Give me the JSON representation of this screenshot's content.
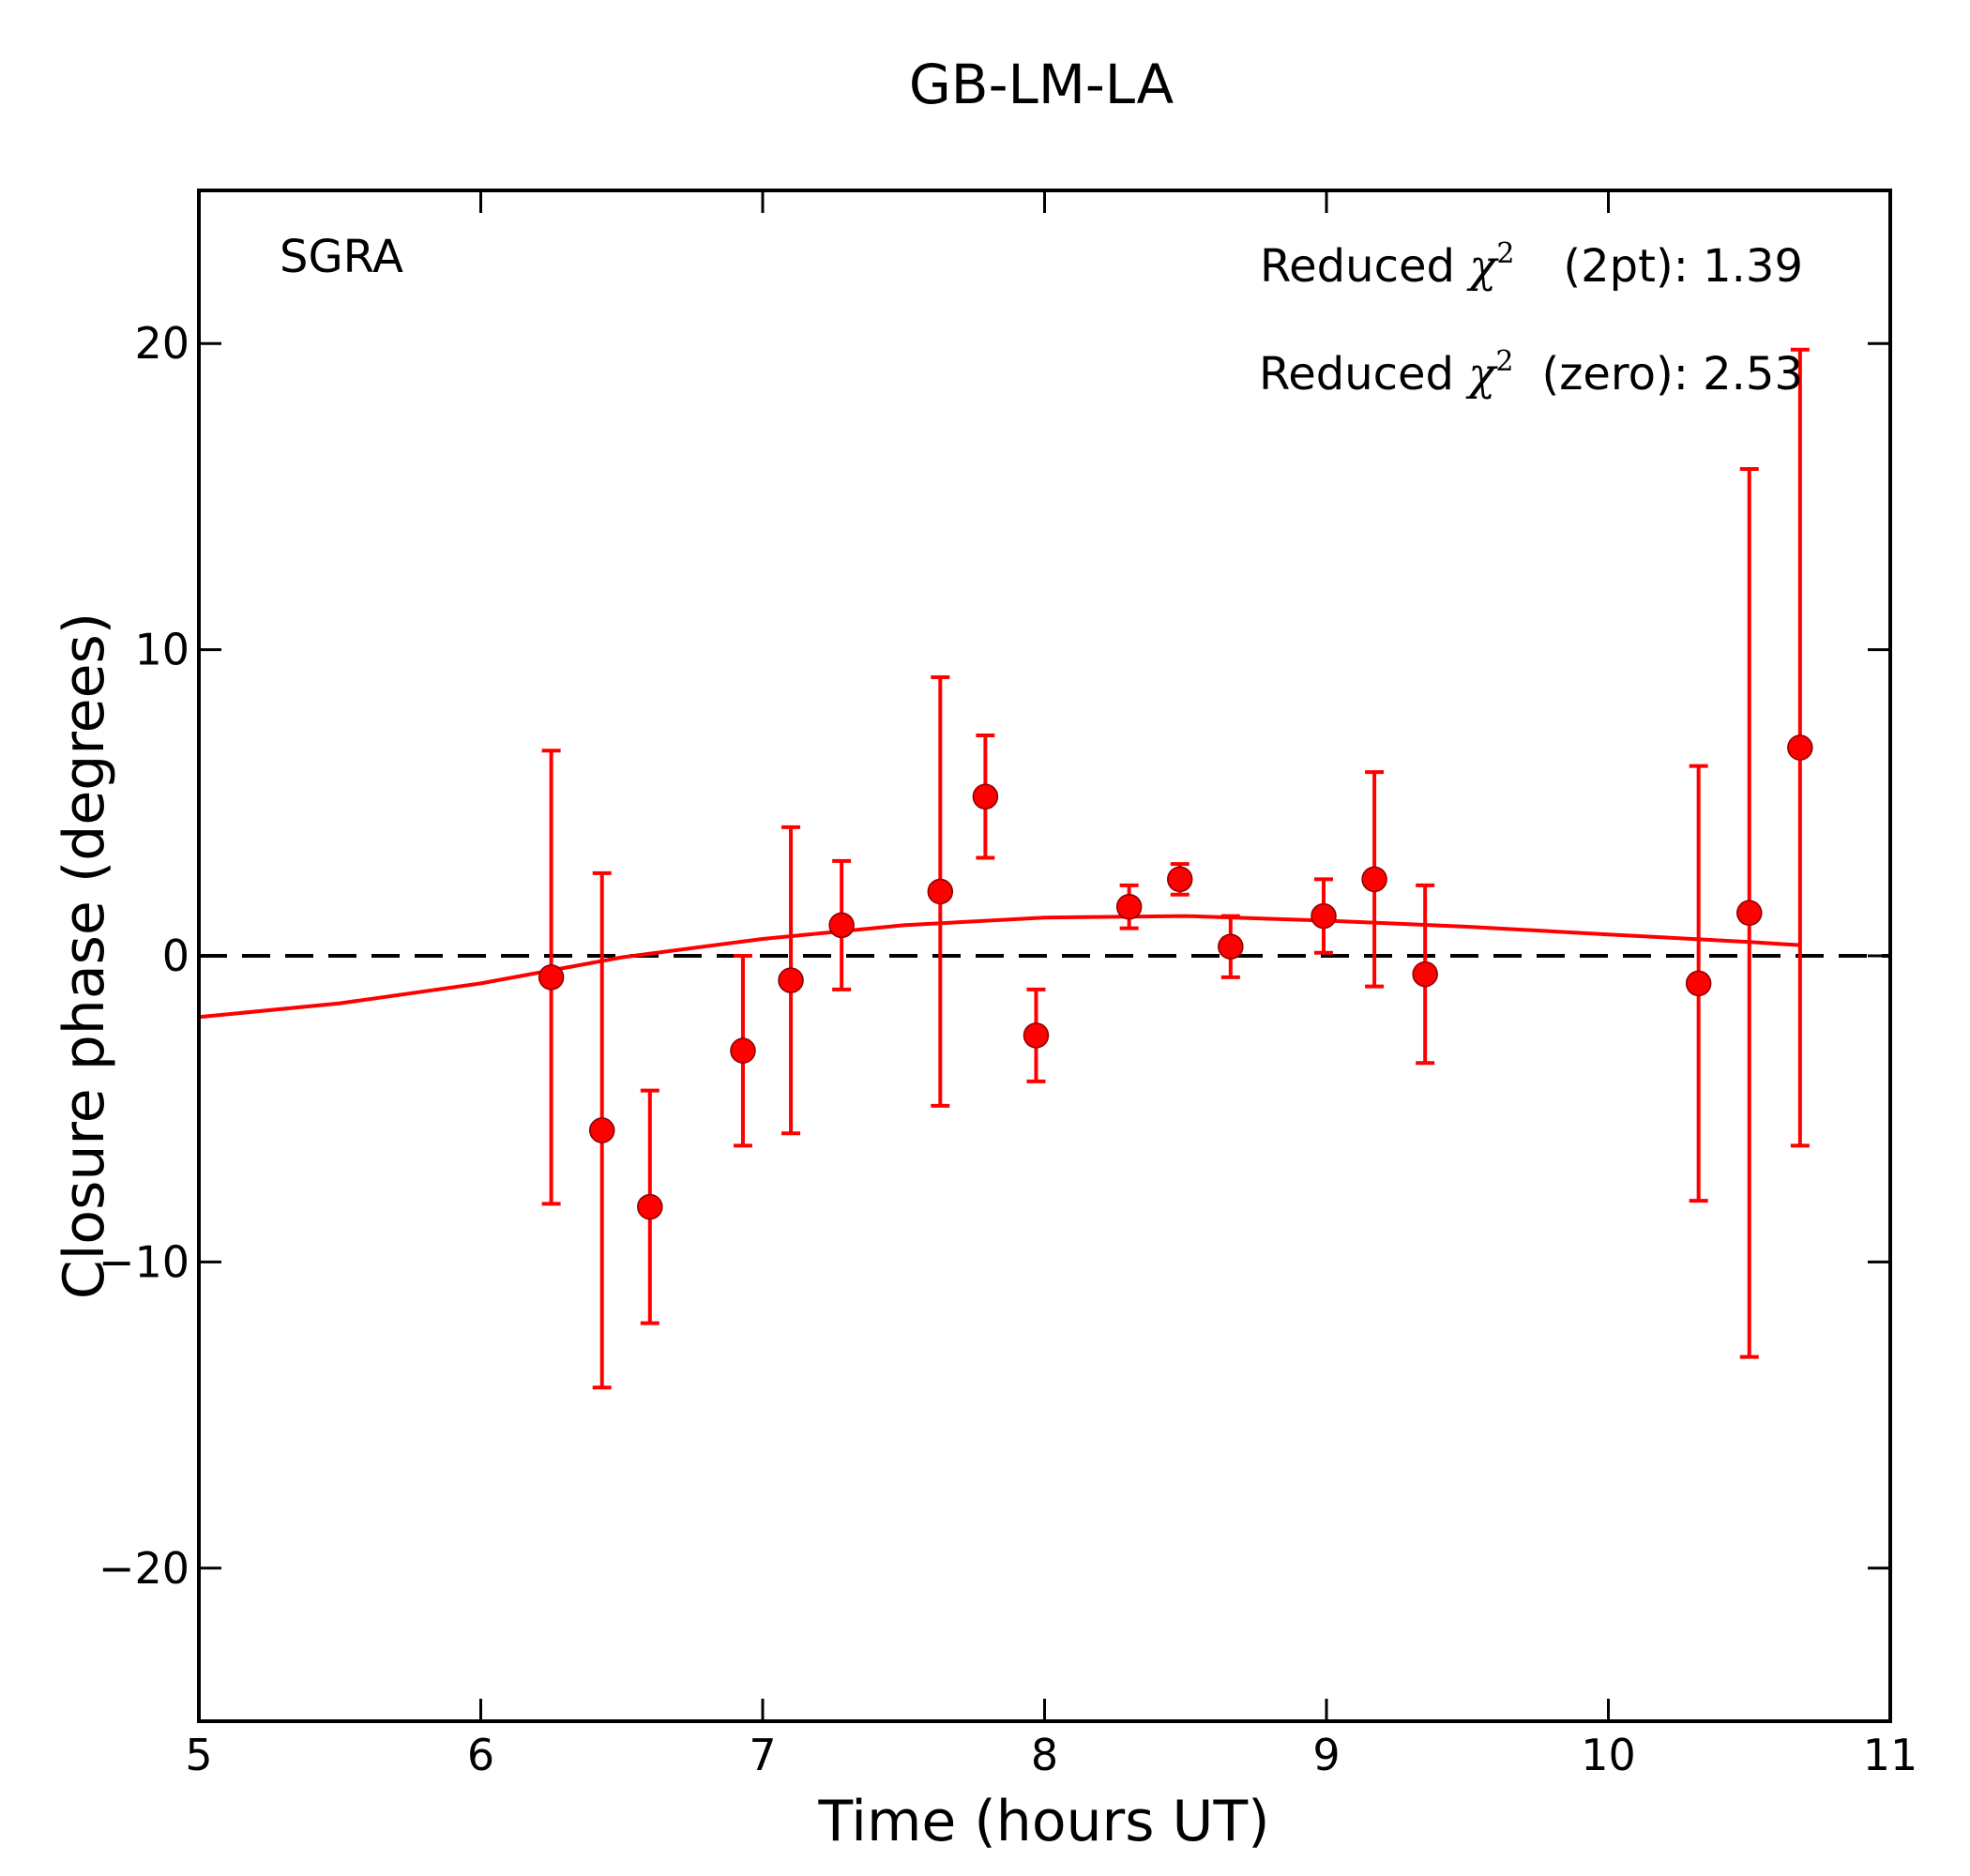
{
  "chart_data": {
    "type": "scatter",
    "title": "GB-LM-LA",
    "xlabel": "Time (hours UT)",
    "ylabel": "Closure phase (degrees)",
    "xlim": [
      5,
      11
    ],
    "ylim": [
      -25,
      25
    ],
    "xticks": [
      5,
      6,
      7,
      8,
      9,
      10,
      11
    ],
    "xtick_labels": [
      "5",
      "6",
      "7",
      "8",
      "9",
      "10",
      "11"
    ],
    "yticks": [
      20,
      10,
      0,
      -10,
      -20
    ],
    "ytick_labels": [
      "20",
      "10",
      "0",
      "−10",
      "−20"
    ],
    "grid": false,
    "source_label": "SGRA",
    "stats": {
      "line1": {
        "prefix": "Reduced ",
        "symbol": "χ",
        "exponent": "2",
        "suffix": "(2pt): 1.39"
      },
      "line2": {
        "prefix": "Reduced ",
        "symbol": "χ",
        "exponent": "2",
        "suffix": "(zero): 2.53"
      }
    },
    "colors": {
      "data": "#ff0000",
      "zero_line": "#000000",
      "axes": "#000000"
    },
    "series": [
      {
        "name": "closure phase",
        "x": [
          6.25,
          6.43,
          6.6,
          6.93,
          7.1,
          7.28,
          7.63,
          7.79,
          7.97,
          8.3,
          8.48,
          8.66,
          8.99,
          9.17,
          9.35,
          10.32,
          10.5,
          10.68
        ],
        "y": [
          -0.7,
          -5.7,
          -8.2,
          -3.1,
          -0.8,
          1.0,
          2.1,
          5.2,
          -2.6,
          1.6,
          2.5,
          0.3,
          1.3,
          2.5,
          -0.6,
          -0.9,
          1.4,
          6.8
        ],
        "yerr": [
          7.4,
          8.4,
          3.8,
          3.1,
          5.0,
          2.1,
          7.0,
          2.0,
          1.5,
          0.7,
          0.5,
          1.0,
          1.2,
          3.5,
          2.9,
          7.1,
          14.5,
          13.0
        ]
      },
      {
        "name": "two-point fit",
        "x": [
          5.0,
          5.5,
          6.0,
          6.5,
          7.0,
          7.5,
          8.0,
          8.5,
          9.0,
          9.5,
          10.0,
          10.5,
          10.68
        ],
        "y": [
          -2.0,
          -1.55,
          -0.9,
          -0.05,
          0.55,
          1.0,
          1.25,
          1.3,
          1.15,
          0.95,
          0.7,
          0.45,
          0.35
        ]
      }
    ]
  }
}
